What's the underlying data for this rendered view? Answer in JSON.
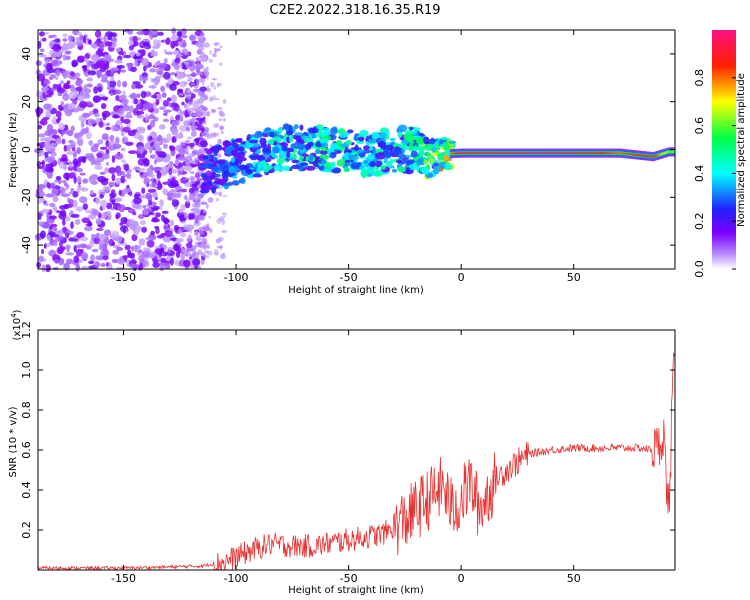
{
  "chart_data": [
    {
      "type": "heatmap",
      "title": "C2E2.2022.318.16.35.R19",
      "xlabel": "Height of straight line (km)",
      "ylabel": "Frequency (Hz)",
      "xlim": [
        -188,
        95
      ],
      "ylim": [
        -50,
        50
      ],
      "xticks": [
        -150,
        -100,
        -50,
        0,
        50
      ],
      "yticks": [
        -40,
        -20,
        0,
        20,
        40
      ],
      "grid": false,
      "colorbar": {
        "label": "Normalized spectral amplitude",
        "range": [
          0,
          1
        ],
        "ticks": [
          "0.0",
          "0.2",
          "0.4",
          "0.6",
          "0.8"
        ],
        "colormap": [
          "#ffffff",
          "#7f00ff",
          "#0000ff",
          "#00ffff",
          "#00ff00",
          "#ffff00",
          "#ff0000",
          "#ff0080"
        ]
      },
      "ridge": {
        "description_points": [
          {
            "x": -110,
            "frequency": -8,
            "amplitude": 0.3
          },
          {
            "x": -100,
            "frequency": -5,
            "amplitude": 0.35
          },
          {
            "x": -90,
            "frequency": -2,
            "amplitude": 0.4
          },
          {
            "x": -80,
            "frequency": 1,
            "amplitude": 0.45
          },
          {
            "x": -60,
            "frequency": 0,
            "amplitude": 0.5
          },
          {
            "x": -40,
            "frequency": -2,
            "amplitude": 0.45
          },
          {
            "x": -30,
            "frequency": 0,
            "amplitude": 0.45
          },
          {
            "x": -20,
            "frequency": 0,
            "amplitude": 0.5
          },
          {
            "x": -15,
            "frequency": -4,
            "amplitude": 0.6
          },
          {
            "x": -10,
            "frequency": -2,
            "amplitude": 0.7
          },
          {
            "x": 0,
            "frequency": -1.5,
            "amplitude": 0.9
          },
          {
            "x": 10,
            "frequency": -1.5,
            "amplitude": 0.9
          },
          {
            "x": 40,
            "frequency": -1.5,
            "amplitude": 1.0
          },
          {
            "x": 70,
            "frequency": -1.5,
            "amplitude": 0.8
          },
          {
            "x": 85,
            "frequency": -3,
            "amplitude": 0.9
          },
          {
            "x": 92,
            "frequency": -1,
            "amplitude": 0.6
          }
        ]
      }
    },
    {
      "type": "line",
      "xlabel": "Height of straight line (km)",
      "ylabel": "SNR (10 * v/v)",
      "yscale_label": "(x10",
      "yscale_exp": "4",
      "xlim": [
        -188,
        95
      ],
      "ylim": [
        0,
        1.2
      ],
      "xticks": [
        -150,
        -100,
        -50,
        0,
        50
      ],
      "yticks": [
        "0.2",
        "0.4",
        "0.6",
        "0.8",
        "1.0",
        "1.2"
      ],
      "grid": false,
      "color": "#e8302e",
      "series": [
        {
          "x": [
            -188,
            -170,
            -150,
            -130,
            -115,
            -105,
            -95,
            -85,
            -75,
            -65,
            -55,
            -45,
            -35,
            -25,
            -18,
            -12,
            -8,
            -4,
            0,
            4,
            8,
            12,
            16,
            20,
            25,
            30,
            40,
            50,
            60,
            70,
            80,
            85,
            88,
            90,
            91,
            92,
            93,
            94
          ],
          "values": [
            0.01,
            0.01,
            0.01,
            0.015,
            0.02,
            0.04,
            0.09,
            0.13,
            0.12,
            0.12,
            0.14,
            0.16,
            0.18,
            0.25,
            0.32,
            0.38,
            0.42,
            0.3,
            0.35,
            0.44,
            0.3,
            0.38,
            0.46,
            0.5,
            0.54,
            0.58,
            0.6,
            0.61,
            0.61,
            0.61,
            0.61,
            0.6,
            0.62,
            0.7,
            0.45,
            0.3,
            0.5,
            1.0
          ]
        }
      ]
    }
  ]
}
